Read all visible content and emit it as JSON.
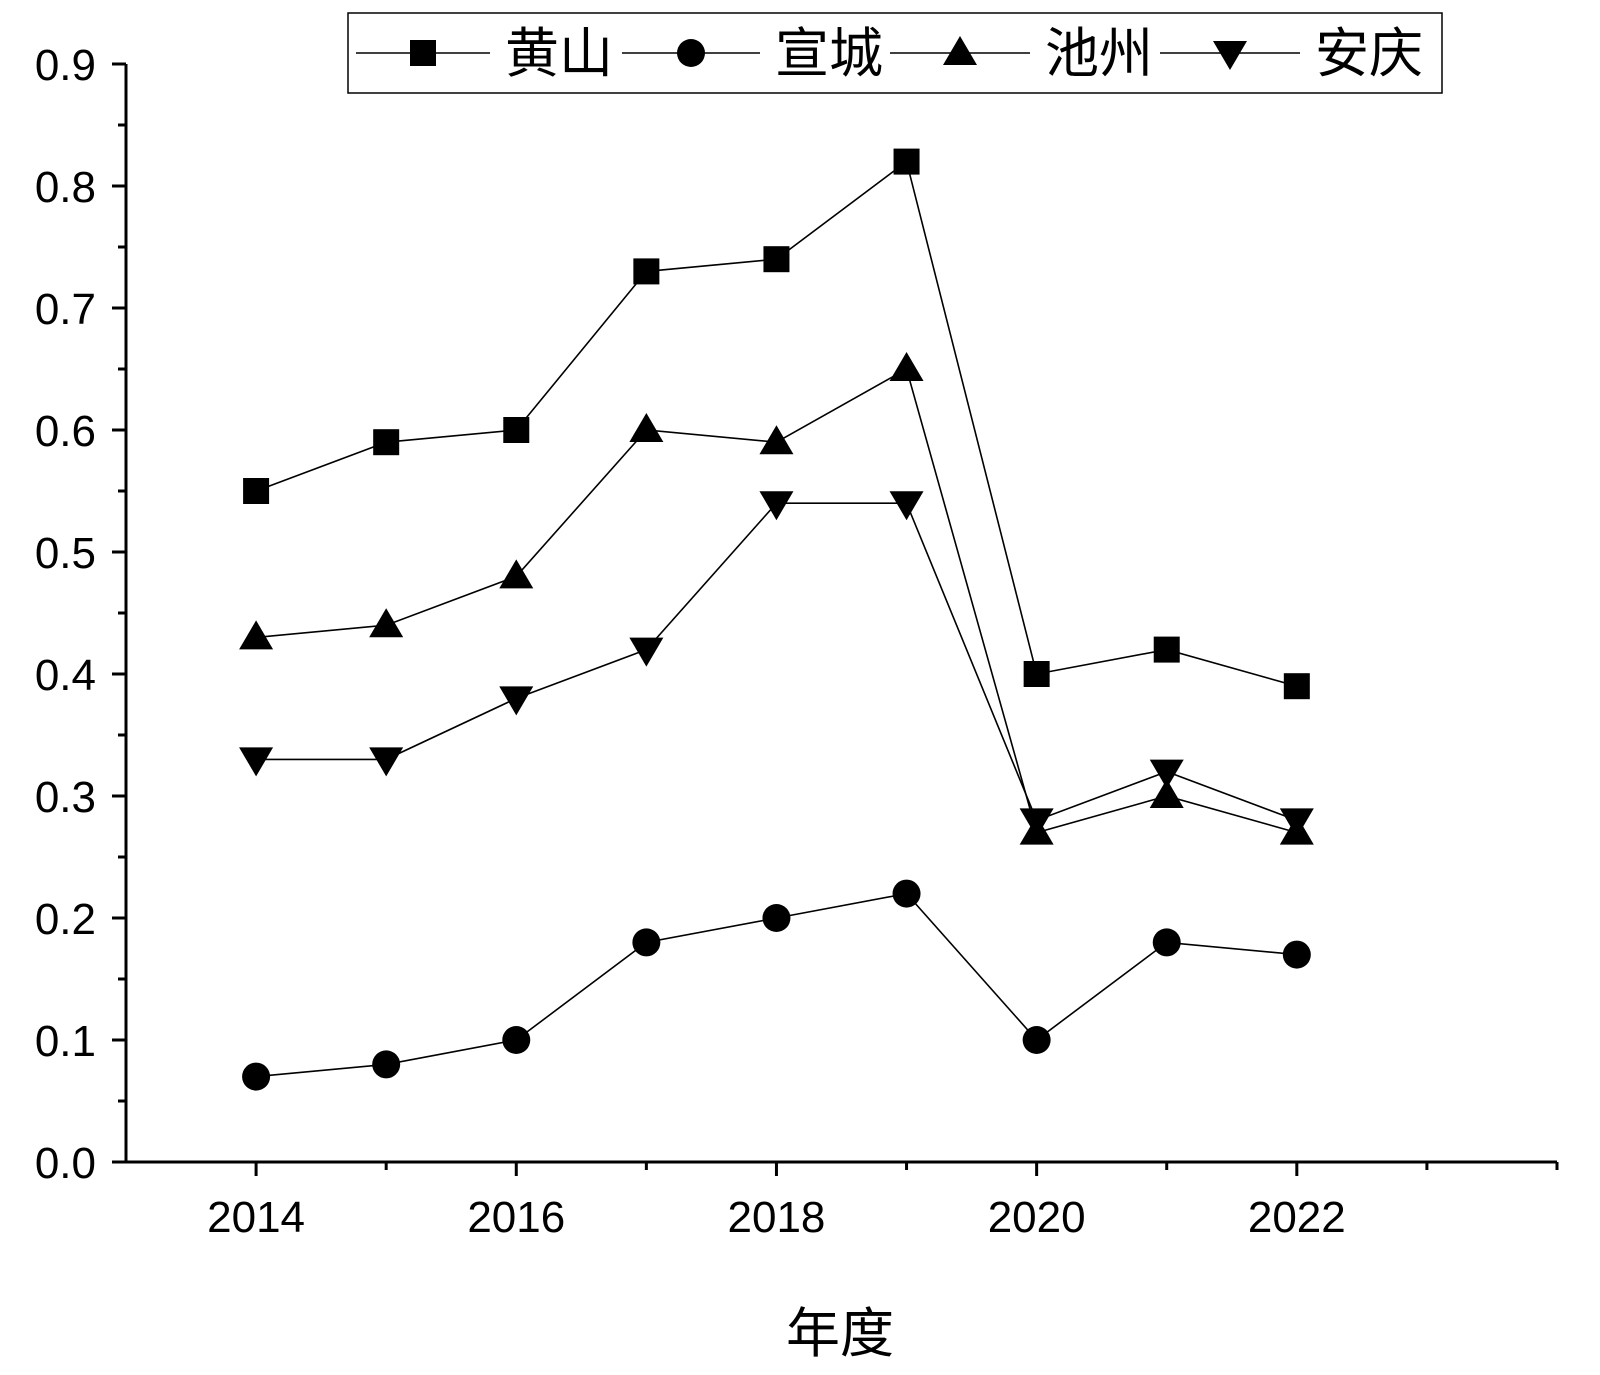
{
  "chart_data": {
    "type": "line",
    "title": "",
    "xlabel": "年度",
    "ylabel": "",
    "x": [
      2014,
      2015,
      2016,
      2017,
      2018,
      2019,
      2020,
      2021,
      2022
    ],
    "xlim": [
      2013,
      2024
    ],
    "ylim": [
      0.0,
      0.9
    ],
    "x_ticks": [
      "2014",
      "2016",
      "2018",
      "2020",
      "2022"
    ],
    "y_ticks": [
      "0.0",
      "0.1",
      "0.2",
      "0.3",
      "0.4",
      "0.5",
      "0.6",
      "0.7",
      "0.8",
      "0.9"
    ],
    "grid": false,
    "legend_position": "top-right",
    "series": [
      {
        "name": "黄山",
        "marker": "square",
        "color": "#000000",
        "values": [
          0.55,
          0.59,
          0.6,
          0.73,
          0.74,
          0.82,
          0.4,
          0.42,
          0.39
        ]
      },
      {
        "name": "宣城",
        "marker": "circle",
        "color": "#000000",
        "values": [
          0.07,
          0.08,
          0.1,
          0.18,
          0.2,
          0.22,
          0.1,
          0.18,
          0.17
        ]
      },
      {
        "name": "池州",
        "marker": "triangle-up",
        "color": "#000000",
        "values": [
          0.43,
          0.44,
          0.48,
          0.6,
          0.59,
          0.65,
          0.27,
          0.3,
          0.27
        ]
      },
      {
        "name": "安庆",
        "marker": "triangle-down",
        "color": "#000000",
        "values": [
          0.33,
          0.33,
          0.38,
          0.42,
          0.54,
          0.54,
          0.28,
          0.32,
          0.28
        ]
      }
    ]
  }
}
